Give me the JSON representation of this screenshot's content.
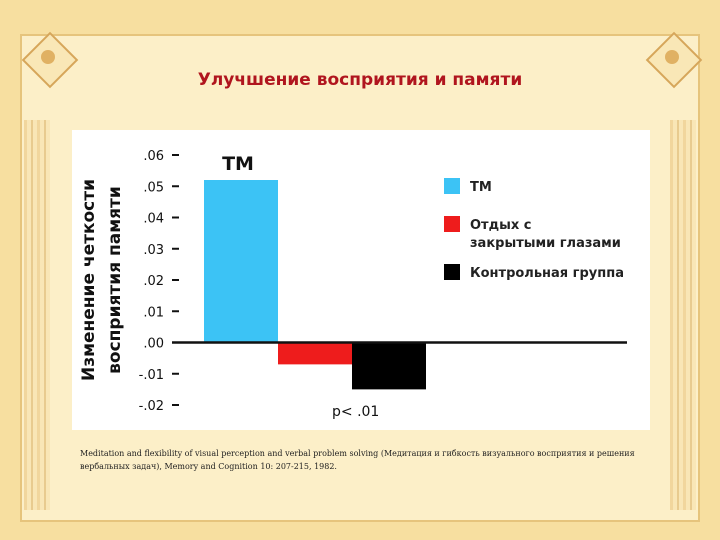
{
  "slide": {
    "title": "Улучшение восприятия и памяти",
    "citation": "Meditation and flexibility of visual perception and verbal problem solving (Медитация и гибкость визуального восприятия и решения вербальных задач), Memory and Cognition 10: 207-215, 1982."
  },
  "chart_data": {
    "type": "bar",
    "title": "",
    "ylabel": "Изменение четкости восприятия памяти",
    "ylabel_lines": [
      "Изменение четкости",
      "восприятия памяти"
    ],
    "ylim": [
      -0.02,
      0.06
    ],
    "yticks": [
      0.06,
      0.05,
      0.04,
      0.03,
      0.02,
      0.01,
      0.0,
      -0.01,
      -0.02
    ],
    "ytick_labels": [
      ".06",
      ".05",
      ".04",
      ".03",
      ".02",
      ".01",
      ".00",
      "-.01",
      "-.02"
    ],
    "categories": [
      "TM",
      "Отдых с закрытыми глазами",
      "Контрольная группа"
    ],
    "values": [
      0.052,
      -0.007,
      -0.015
    ],
    "colors": [
      "#3cc3f5",
      "#ee1c1c",
      "#000000"
    ],
    "bar_annotation": "TM",
    "legend": {
      "placement": "right",
      "entries": [
        {
          "label_lines": [
            "TM"
          ],
          "color": "#3cc3f5"
        },
        {
          "label_lines": [
            "Отдых с",
            "закрытыми глазами"
          ],
          "color": "#ee1c1c"
        },
        {
          "label_lines": [
            "Контрольная группа"
          ],
          "color": "#000000"
        }
      ]
    },
    "note": "p< .01",
    "grid": false
  }
}
